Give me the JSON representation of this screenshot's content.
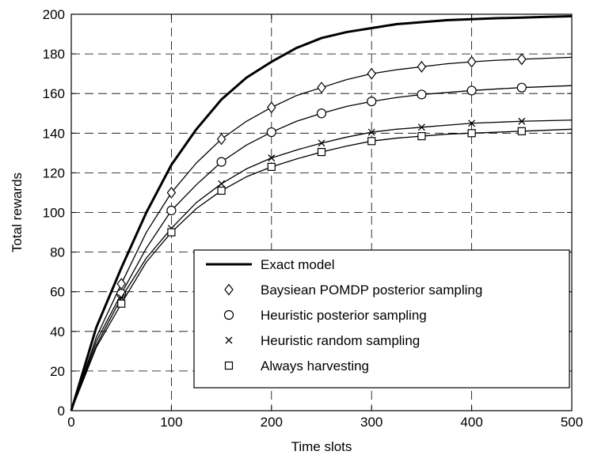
{
  "chart_data": {
    "type": "line",
    "title": "",
    "xlabel": "Time slots",
    "ylabel": "Total rewards",
    "xlim": [
      0,
      500
    ],
    "ylim": [
      0,
      200
    ],
    "xticks": [
      0,
      100,
      200,
      300,
      400,
      500
    ],
    "yticks": [
      0,
      20,
      40,
      60,
      80,
      100,
      120,
      140,
      160,
      180,
      200
    ],
    "grid": true,
    "legend_position": "lower-right",
    "series": [
      {
        "name": "Exact model",
        "line": "thick",
        "marker": "none",
        "x": [
          0,
          25,
          50,
          75,
          100,
          125,
          150,
          175,
          200,
          225,
          250,
          275,
          300,
          325,
          350,
          375,
          400,
          425,
          450,
          475,
          500
        ],
        "y": [
          0,
          42,
          72,
          100,
          124,
          142,
          157,
          168,
          176,
          183,
          188,
          191,
          193,
          195,
          196,
          197,
          197.5,
          198,
          198.3,
          198.7,
          199
        ]
      },
      {
        "name": "Baysiean POMDP posterior sampling",
        "line": "thin",
        "marker": "diamond",
        "x": [
          0,
          25,
          50,
          75,
          100,
          125,
          150,
          175,
          200,
          225,
          250,
          275,
          300,
          325,
          350,
          375,
          400,
          425,
          450,
          475,
          500
        ],
        "y": [
          0,
          37,
          64,
          90,
          110,
          125,
          137,
          146,
          153,
          159,
          163,
          167,
          170,
          172,
          173.5,
          175,
          176,
          176.8,
          177.3,
          177.8,
          178.3
        ],
        "marker_x": [
          50,
          100,
          150,
          200,
          250,
          300,
          350,
          400,
          450
        ],
        "marker_y": [
          64,
          110,
          137,
          153,
          163,
          170,
          173.5,
          176,
          177.3
        ]
      },
      {
        "name": "Heuristic posterior sampling",
        "line": "thin",
        "marker": "circle",
        "x": [
          0,
          25,
          50,
          75,
          100,
          125,
          150,
          175,
          200,
          225,
          250,
          275,
          300,
          325,
          350,
          375,
          400,
          425,
          450,
          475,
          500
        ],
        "y": [
          0,
          35,
          59,
          82,
          101,
          114,
          125.5,
          134,
          140.5,
          146,
          150,
          153.5,
          156,
          158,
          159.5,
          160.5,
          161.5,
          162.3,
          163,
          163.5,
          164
        ],
        "marker_x": [
          50,
          100,
          150,
          200,
          250,
          300,
          350,
          400,
          450
        ],
        "marker_y": [
          59,
          101,
          125.5,
          140.5,
          150,
          156,
          159.5,
          161.5,
          163
        ]
      },
      {
        "name": "Heuristic random sampling",
        "line": "thin",
        "marker": "x",
        "x": [
          0,
          25,
          50,
          75,
          100,
          125,
          150,
          175,
          200,
          225,
          250,
          275,
          300,
          325,
          350,
          375,
          400,
          425,
          450,
          475,
          500
        ],
        "y": [
          0,
          33,
          57,
          77,
          92,
          105,
          114.5,
          122,
          127.5,
          131.5,
          135,
          138,
          140.5,
          142,
          143,
          144,
          145,
          145.5,
          146,
          146.3,
          146.6
        ],
        "marker_x": [
          50,
          100,
          150,
          200,
          250,
          300,
          350,
          400,
          450
        ],
        "marker_y": [
          57,
          92,
          114.5,
          127.5,
          135,
          140.5,
          143,
          145,
          146
        ]
      },
      {
        "name": "Always harvesting",
        "line": "thin",
        "marker": "square",
        "x": [
          0,
          25,
          50,
          75,
          100,
          125,
          150,
          175,
          200,
          225,
          250,
          275,
          300,
          325,
          350,
          375,
          400,
          425,
          450,
          475,
          500
        ],
        "y": [
          0,
          32,
          54,
          75,
          90,
          102,
          111,
          118,
          123,
          127,
          130.5,
          133.5,
          136,
          137.5,
          138.5,
          139.5,
          140,
          140.5,
          141,
          141.5,
          142
        ],
        "marker_x": [
          50,
          100,
          150,
          200,
          250,
          300,
          350,
          400,
          450
        ],
        "marker_y": [
          54,
          90,
          111,
          123,
          130.5,
          136,
          138.5,
          140,
          141
        ]
      }
    ]
  }
}
